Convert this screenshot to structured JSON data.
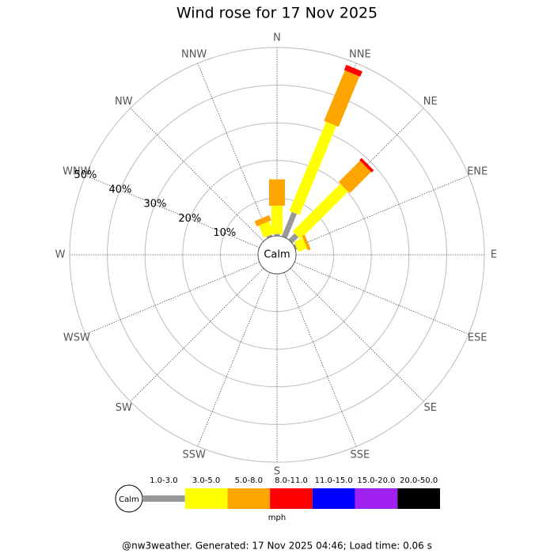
{
  "chart_data": {
    "type": "windrose",
    "title": "Wind rose for 17 Nov 2025",
    "categories": [
      "N",
      "NNE",
      "NE",
      "ENE",
      "E",
      "ESE",
      "SE",
      "SSE",
      "S",
      "SSW",
      "SW",
      "WSW",
      "W",
      "WNW",
      "NW",
      "NNW"
    ],
    "series": [
      {
        "name": "1.0-3.0",
        "color": "#999999",
        "values": [
          0.5,
          7,
          2.3,
          0.5,
          0,
          0,
          0,
          0,
          0,
          0,
          0,
          0,
          0,
          0,
          0,
          0.5
        ]
      },
      {
        "name": "3.0-5.0",
        "color": "#ffff00",
        "values": [
          7.5,
          25.6,
          17.9,
          2.5,
          0,
          0,
          0,
          0,
          0,
          0,
          0,
          0,
          0,
          0,
          0,
          3.5
        ]
      },
      {
        "name": "5.0-8.0",
        "color": "#ffa500",
        "values": [
          7,
          14.5,
          8,
          0.8,
          0,
          0,
          0,
          0,
          0,
          0,
          0,
          0,
          0,
          0,
          0,
          1.5
        ]
      },
      {
        "name": "8.0-11.0",
        "color": "#ff0000",
        "values": [
          0,
          1.5,
          0.8,
          0,
          0,
          0,
          0,
          0,
          0,
          0,
          0,
          0,
          0,
          0,
          0,
          0
        ]
      },
      {
        "name": "11.0-15.0",
        "color": "#0000ff",
        "values": [
          0,
          0,
          0,
          0,
          0,
          0,
          0,
          0,
          0,
          0,
          0,
          0,
          0,
          0,
          0,
          0
        ]
      },
      {
        "name": "15.0-20.0",
        "color": "#a020f0",
        "values": [
          0,
          0,
          0,
          0,
          0,
          0,
          0,
          0,
          0,
          0,
          0,
          0,
          0,
          0,
          0,
          0
        ]
      },
      {
        "name": "20.0-50.0",
        "color": "#000000",
        "values": [
          0,
          0,
          0,
          0,
          0,
          0,
          0,
          0,
          0,
          0,
          0,
          0,
          0,
          0,
          0,
          0
        ]
      }
    ],
    "rlim": [
      0,
      50
    ],
    "rticks": [
      {
        "value": 10,
        "label": "10%"
      },
      {
        "value": 20,
        "label": "20%"
      },
      {
        "value": 30,
        "label": "30%"
      },
      {
        "value": 40,
        "label": "40%"
      },
      {
        "value": 50,
        "label": "50%"
      }
    ],
    "calm_label": "Calm",
    "unit": "mph",
    "footer": "@nw3weather. Generated: 17 Nov 2025 04:46; Load time: 0.06 s"
  }
}
